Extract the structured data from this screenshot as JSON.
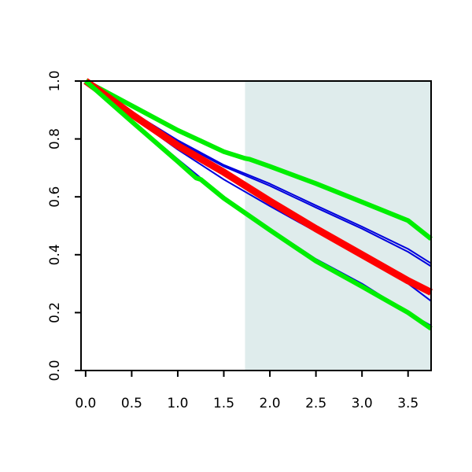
{
  "chart_data": {
    "type": "line",
    "title": "",
    "xlabel": "",
    "ylabel": "",
    "xlim": [
      -0.05,
      3.75
    ],
    "ylim": [
      0.0,
      1.0
    ],
    "x_ticks": [
      0.0,
      0.5,
      1.0,
      1.5,
      2.0,
      2.5,
      3.0,
      3.5
    ],
    "x_tick_labels": [
      "0.0",
      "0.5",
      "1.0",
      "1.5",
      "2.0",
      "2.5",
      "3.0",
      "3.5"
    ],
    "y_ticks": [
      0.0,
      0.2,
      0.4,
      0.6,
      0.8,
      1.0
    ],
    "y_tick_labels": [
      "0.0",
      "0.2",
      "0.4",
      "0.6",
      "0.8",
      "1.0"
    ],
    "grid": false,
    "shaded_region": {
      "x_start": 1.73,
      "x_end": 3.75,
      "color": "#dfecec"
    },
    "series": [
      {
        "color": "#00ee00",
        "role": "upper-band",
        "x": [
          0,
          0.5,
          1.0,
          1.5,
          1.73,
          1.78,
          2.0,
          2.5,
          3.0,
          3.5,
          3.75
        ],
        "y": [
          1.0,
          0.915,
          0.83,
          0.756,
          0.733,
          0.73,
          0.705,
          0.646,
          0.582,
          0.518,
          0.455
        ]
      },
      {
        "color": "#0000dd",
        "role": "sample",
        "x": [
          0,
          0.5,
          1.0,
          1.5,
          2.0,
          2.5,
          3.0,
          3.5,
          3.75
        ],
        "y": [
          1.0,
          0.893,
          0.795,
          0.71,
          0.645,
          0.57,
          0.497,
          0.42,
          0.37
        ]
      },
      {
        "color": "#0000dd",
        "role": "sample",
        "x": [
          0,
          0.5,
          1.0,
          1.5,
          2.0,
          2.5,
          3.0,
          3.5,
          3.75
        ],
        "y": [
          1.0,
          0.89,
          0.79,
          0.705,
          0.638,
          0.563,
          0.49,
          0.41,
          0.36
        ]
      },
      {
        "color": "#0000dd",
        "role": "sample",
        "x": [
          0,
          0.5,
          1.0,
          1.5,
          2.0,
          2.5,
          3.0,
          3.5,
          3.75
        ],
        "y": [
          1.0,
          0.878,
          0.763,
          0.66,
          0.568,
          0.48,
          0.392,
          0.3,
          0.24
        ]
      },
      {
        "color": "#0000dd",
        "role": "sample",
        "x": [
          0,
          0.5,
          1.0,
          1.5,
          2.0,
          2.5,
          3.0,
          3.5,
          3.75
        ],
        "y": [
          1.0,
          0.865,
          0.73,
          0.6,
          0.49,
          0.385,
          0.3,
          0.2,
          0.155
        ]
      },
      {
        "color": "#ff0000",
        "role": "estimate",
        "x": [
          0,
          0.5,
          1.0,
          1.5,
          2.0,
          2.5,
          3.0,
          3.5,
          3.75
        ],
        "y": [
          1.0,
          0.885,
          0.777,
          0.685,
          0.585,
          0.49,
          0.4,
          0.31,
          0.27
        ]
      },
      {
        "color": "#00ee00",
        "role": "lower-band",
        "x": [
          0,
          0.5,
          1.0,
          1.2,
          1.25,
          1.5,
          2.0,
          2.5,
          3.0,
          3.5,
          3.75
        ],
        "y": [
          1.0,
          0.86,
          0.722,
          0.665,
          0.66,
          0.595,
          0.485,
          0.378,
          0.29,
          0.2,
          0.145
        ]
      }
    ]
  }
}
